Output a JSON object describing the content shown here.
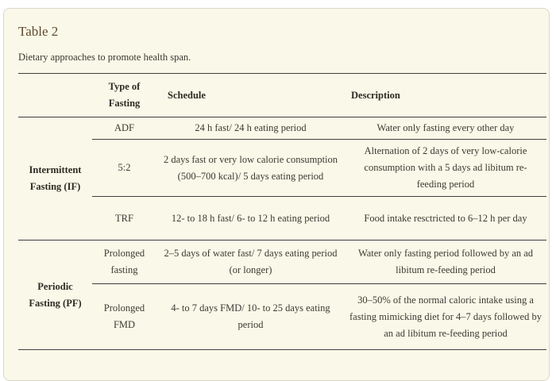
{
  "panel": {
    "title": "Table 2",
    "caption": "Dietary approaches to promote health span.",
    "colors": {
      "panel_background": "#faf8e8",
      "panel_border": "#d9d7cb",
      "title_text": "#604a2e",
      "body_text": "#3d3a33",
      "rule": "#3f3f3f"
    }
  },
  "table": {
    "headers": {
      "group": "",
      "type": "Type of Fasting",
      "schedule": "Schedule",
      "description": "Description"
    },
    "groups": [
      {
        "label": "Intermittent Fasting (IF)",
        "rows": [
          {
            "type": "ADF",
            "schedule": "24 h fast/ 24 h eating period",
            "description": "Water only fasting every other day"
          },
          {
            "type": "5:2",
            "schedule": "2 days fast or very low calorie consumption (500–700 kcal)/ 5 days eating period",
            "description": "Alternation of 2 days of very low-calorie consumption with a 5 days ad libitum re-feeding period"
          },
          {
            "type": "TRF",
            "schedule": "12- to 18 h fast/ 6- to 12 h eating period",
            "description": "Food intake resctricted to 6–12 h per day"
          }
        ]
      },
      {
        "label": "Periodic Fasting (PF)",
        "rows": [
          {
            "type": "Prolonged fasting",
            "schedule": "2–5 days of water fast/ 7 days eating period (or longer)",
            "description": "Water only fasting period followed by an ad libitum re-feeding period"
          },
          {
            "type": "Prolonged FMD",
            "schedule": "4- to 7 days FMD/ 10- to 25 days eating period",
            "description": "30–50% of the normal caloric intake using a fasting mimicking diet for 4–7 days followed by an ad libitum re-feeding period"
          }
        ]
      }
    ]
  }
}
